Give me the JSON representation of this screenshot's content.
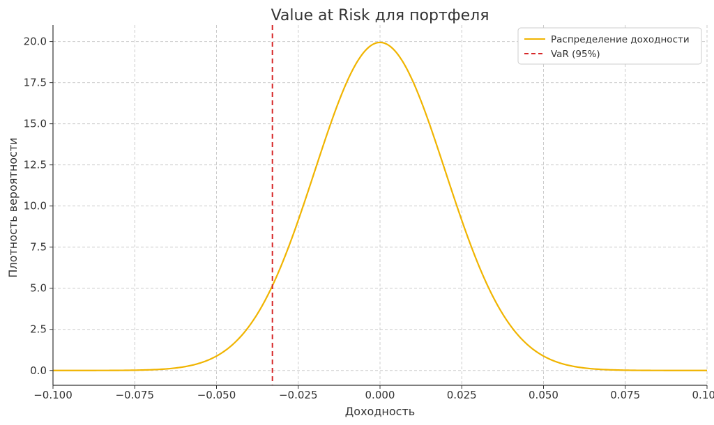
{
  "chart_data": {
    "type": "line",
    "title": "Value at Risk для портфеля",
    "xlabel": "Доходность",
    "ylabel": "Плотность вероятности",
    "xlim": [
      -0.1,
      0.1
    ],
    "ylim": [
      -0.9,
      21.0
    ],
    "xticks": [
      -0.1,
      -0.075,
      -0.05,
      -0.025,
      0.0,
      0.025,
      0.05,
      0.075,
      0.1
    ],
    "xtick_labels": [
      "−0.100",
      "−0.075",
      "−0.050",
      "−0.025",
      "0.000",
      "0.025",
      "0.050",
      "0.075",
      "0.100"
    ],
    "yticks": [
      0.0,
      2.5,
      5.0,
      7.5,
      10.0,
      12.5,
      15.0,
      17.5,
      20.0
    ],
    "ytick_labels": [
      "0.0",
      "2.5",
      "5.0",
      "7.5",
      "10.0",
      "12.5",
      "15.0",
      "17.5",
      "20.0"
    ],
    "grid": true,
    "legend_position": "top-right",
    "series": [
      {
        "name": "Распределение доходности",
        "color": "#f0b400",
        "style": "solid",
        "distribution": "normal",
        "mean": 0.0,
        "std": 0.02,
        "x": [
          -0.1,
          0.1
        ]
      },
      {
        "name": "VaR (95%)",
        "color": "#d62728",
        "style": "dashed",
        "x": -0.0329
      }
    ]
  }
}
